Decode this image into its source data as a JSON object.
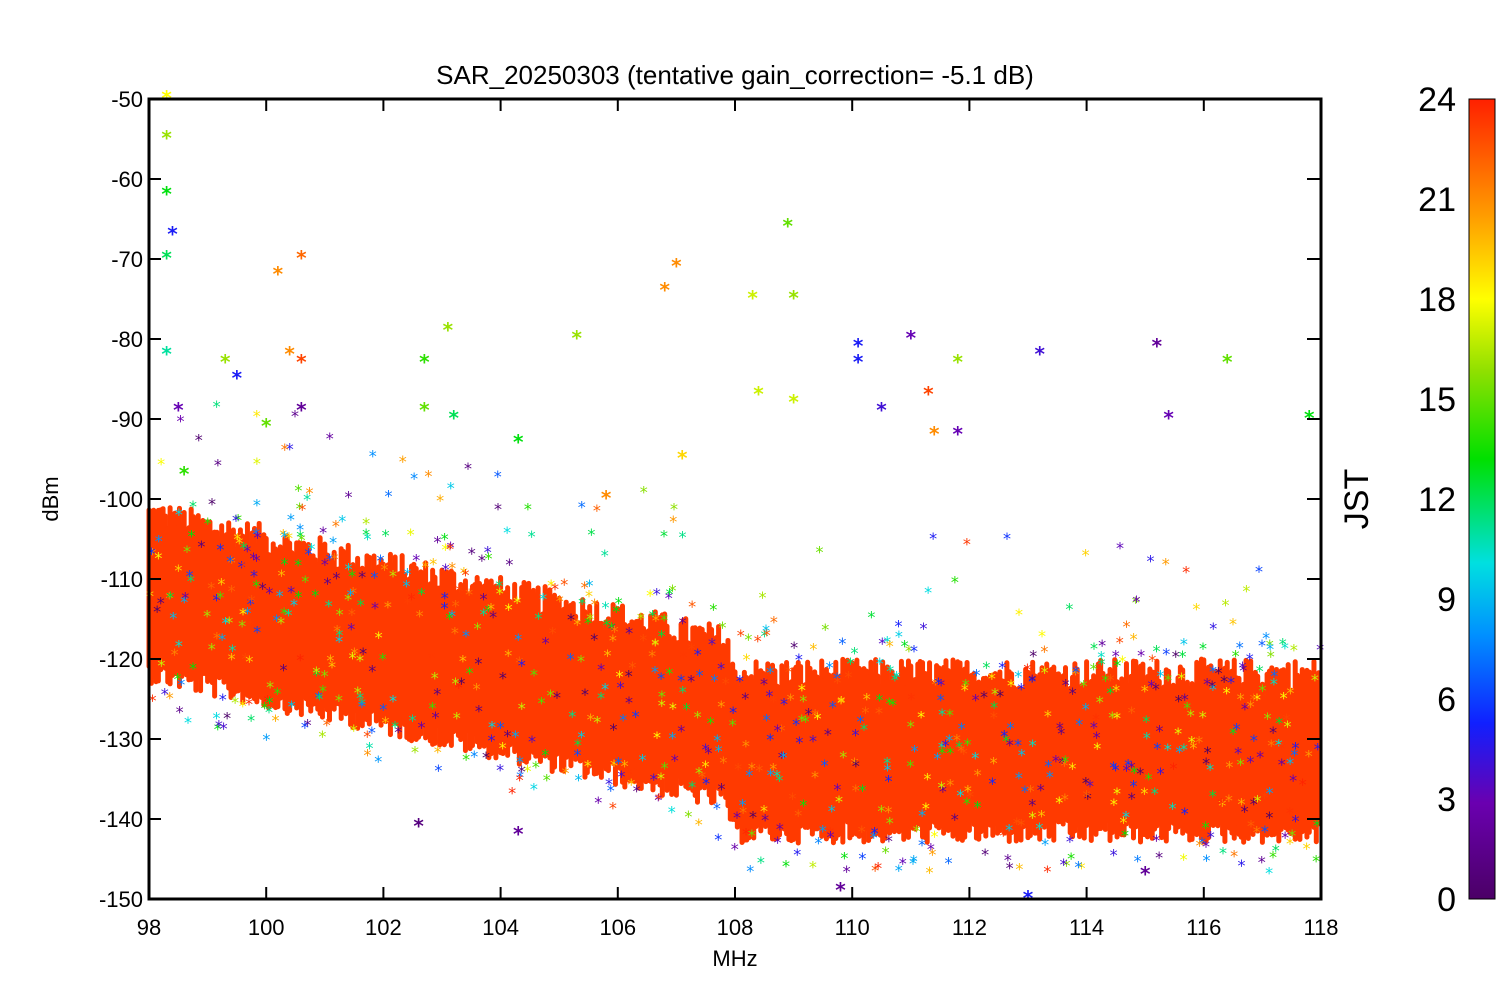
{
  "chart_data": {
    "type": "scatter",
    "title": "SAR_20250303 (tentative gain_correction= -5.1 dB)",
    "xlabel": "MHz",
    "ylabel": "dBm",
    "xlim": [
      98,
      118
    ],
    "ylim": [
      -150,
      -50
    ],
    "x_ticks": [
      "98",
      "100",
      "102",
      "104",
      "106",
      "108",
      "110",
      "112",
      "114",
      "116",
      "118"
    ],
    "y_ticks": [
      "-50",
      "-60",
      "-70",
      "-80",
      "-90",
      "-100",
      "-110",
      "-120",
      "-130",
      "-140",
      "-150"
    ],
    "colorbar": {
      "label": "JST",
      "range": [
        0,
        24
      ],
      "ticks": [
        "0",
        "3",
        "6",
        "9",
        "12",
        "15",
        "18",
        "21",
        "24"
      ],
      "colormap": "rainbow (purple → blue → cyan → green → yellow → orange → red)"
    },
    "marker": "asterisk",
    "series_description": "Dense noise-floor band: about -112 dBm at 98 MHz falling to about -128 dBm at 107 MHz, stepping to about -132 dBm from 108 to 118 MHz; scattered peaks up to -50 dBm near 98.3 MHz",
    "x": [
      98.3,
      98.3,
      98.3,
      98.3,
      98.3,
      98.4,
      98.5,
      98.6,
      99.3,
      99.5,
      100.0,
      100.2,
      100.4,
      100.6,
      100.6,
      102.7,
      102.7,
      103.1,
      103.2,
      104.3,
      105.3,
      106.8,
      107.0,
      107.1,
      108.3,
      108.4,
      108.9,
      109.0,
      109.0,
      110.1,
      110.1,
      110.5,
      111.0,
      111.3,
      111.4,
      111.8,
      111.8,
      113.2,
      115.2,
      115.4,
      116.4,
      117.8,
      109.8,
      113.0,
      110.9,
      104.3,
      102.6,
      115.0,
      100.6,
      105.8
    ],
    "y": [
      -50,
      -55,
      -62,
      -70,
      -82,
      -67,
      -89,
      -97,
      -83,
      -85,
      -91,
      -72,
      -82,
      -70,
      -83,
      -83,
      -89,
      -79,
      -90,
      -93,
      -80,
      -74,
      -71,
      -95,
      -75,
      -87,
      -66,
      -75,
      -88,
      -81,
      -83,
      -89,
      -80,
      -87,
      -92,
      -83,
      -92,
      -82,
      -81,
      -90,
      -83,
      -90,
      -149,
      -150,
      -151,
      -142,
      -141,
      -147,
      -89,
      -100
    ],
    "jst": [
      18,
      16,
      13,
      12,
      11,
      5,
      3,
      14,
      16,
      5,
      15,
      21,
      21,
      22,
      23,
      14,
      15,
      16,
      12,
      13,
      16,
      21,
      21,
      19,
      17,
      17,
      15,
      16,
      17,
      5,
      5,
      4,
      3,
      23,
      21,
      16,
      3,
      4,
      2,
      3,
      15,
      13,
      2,
      5,
      2,
      2,
      1,
      2,
      2,
      21
    ]
  }
}
